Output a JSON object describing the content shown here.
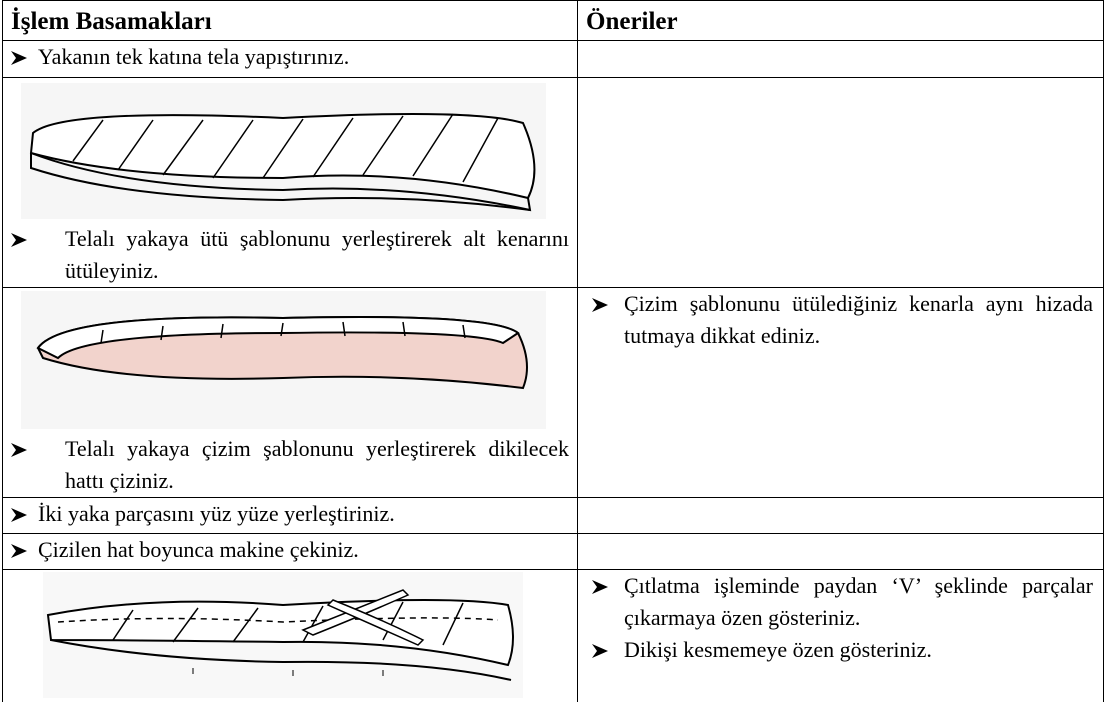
{
  "header": {
    "steps": "İşlem Basamakları",
    "suggestions": "Öneriler"
  },
  "rows": [
    {
      "steps": [
        "Yakanın tek katına tela yapıştırınız."
      ]
    },
    {
      "steps": [
        "Telalı yakaya ütü şablonunu yerleştirerek alt kenarını ütüleyiniz."
      ]
    },
    {
      "steps": [
        "Telalı yakaya çizim şablonunu yerleştirerek dikilecek hattı çiziniz."
      ],
      "suggestions": [
        "Çizim şablonunu ütülediğiniz kenarla aynı hizada tutmaya dikkat ediniz."
      ]
    },
    {
      "steps": [
        "İki yaka parçasını yüz yüze yerleştiriniz."
      ]
    },
    {
      "steps": [
        "Çizilen hat boyunca makine çekiniz."
      ]
    },
    {
      "suggestions": [
        "Çıtlatma işleminde paydan ‘V’ şeklinde parçalar çıkarmaya özen gösteriniz.",
        "Dikişi kesmemeye özen gösteriniz."
      ]
    }
  ]
}
